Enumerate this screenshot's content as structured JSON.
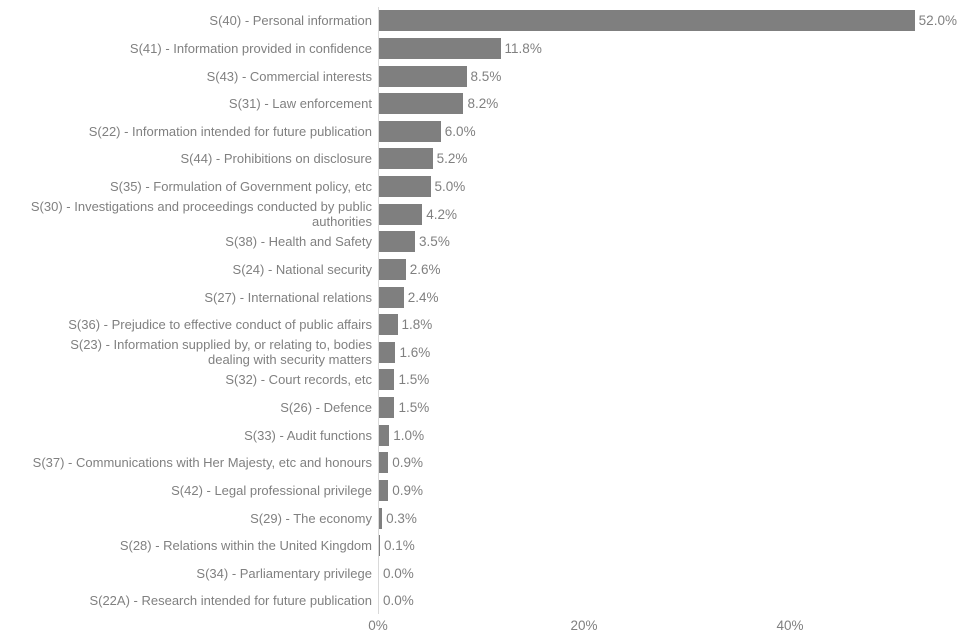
{
  "chart_data": {
    "type": "bar",
    "orientation": "horizontal",
    "title": "",
    "xlabel": "",
    "ylabel": "",
    "grid": false,
    "legend": false,
    "xlim": [
      0,
      56.4
    ],
    "categories": [
      "S(40) - Personal information",
      "S(41) - Information provided in confidence",
      "S(43) - Commercial interests",
      "S(31) - Law enforcement",
      "S(22) - Information intended for future publication",
      "S(44) - Prohibitions on disclosure",
      "S(35) - Formulation of Government policy, etc",
      "S(30) - Investigations and proceedings conducted by public\nauthorities",
      "S(38) - Health and Safety",
      "S(24) - National security",
      "S(27) - International relations",
      "S(36) - Prejudice to effective conduct of public affairs",
      "S(23) - Information supplied by, or relating to, bodies\ndealing with security matters",
      "S(32) - Court records, etc",
      "S(26) - Defence",
      "S(33) - Audit functions",
      "S(37) - Communications with Her Majesty, etc and honours",
      "S(42) - Legal professional privilege",
      "S(29) - The economy",
      "S(28) - Relations within the United Kingdom",
      "S(34) - Parliamentary privilege",
      "S(22A) - Research intended for future publication"
    ],
    "values": [
      52.0,
      11.8,
      8.5,
      8.2,
      6.0,
      5.2,
      5.0,
      4.2,
      3.5,
      2.6,
      2.4,
      1.8,
      1.6,
      1.5,
      1.5,
      1.0,
      0.9,
      0.9,
      0.3,
      0.1,
      0.0,
      0.0
    ],
    "value_labels": [
      "52.0%",
      "11.8%",
      "8.5%",
      "8.2%",
      "6.0%",
      "5.2%",
      "5.0%",
      "4.2%",
      "3.5%",
      "2.6%",
      "2.4%",
      "1.8%",
      "1.6%",
      "1.5%",
      "1.5%",
      "1.0%",
      "0.9%",
      "0.9%",
      "0.3%",
      "0.1%",
      "0.0%",
      "0.0%"
    ],
    "x_ticks": [
      {
        "label": "0%",
        "value": 0
      },
      {
        "label": "20%",
        "value": 20
      },
      {
        "label": "40%",
        "value": 40
      }
    ],
    "bar_color": "#7f7f7f",
    "text_color": "#808080",
    "axis_line_color": "#d9d9d9",
    "background_color": "#ffffff"
  }
}
